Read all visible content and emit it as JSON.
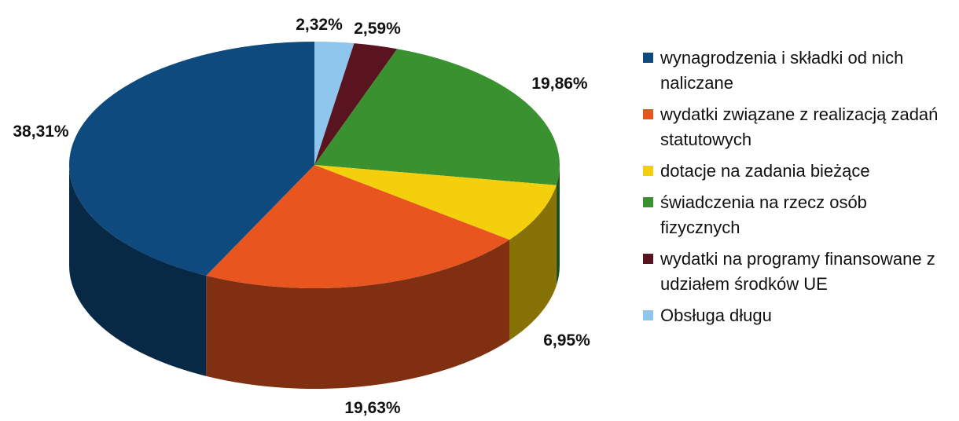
{
  "chart_data": {
    "type": "pie",
    "title": "",
    "slices": [
      {
        "label": "wynagrodzenia i składki od nich naliczane",
        "value": 38.31,
        "value_label": "38,31%",
        "color": "#0e4a7e"
      },
      {
        "label": "wydatki związane z realizacją zadań statutowych",
        "value": 19.63,
        "value_label": "19,63%",
        "color": "#e8551f"
      },
      {
        "label": "dotacje na zadania bieżące",
        "value": 6.95,
        "value_label": "6,95%",
        "color": "#f4d00c"
      },
      {
        "label": "świadczenia na rzecz osób fizycznych",
        "value": 19.86,
        "value_label": "19,86%",
        "color": "#3a9130"
      },
      {
        "label": "wydatki na programy finansowane z udziałem środków UE",
        "value": 2.59,
        "value_label": "2,59%",
        "color": "#5a1420"
      },
      {
        "label": "Obsługa długu",
        "value": 2.32,
        "value_label": "2,32%",
        "color": "#8ec6ee"
      }
    ],
    "legend": {
      "position": "right"
    }
  }
}
